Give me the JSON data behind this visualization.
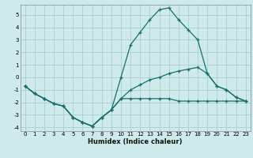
{
  "xlabel": "Humidex (Indice chaleur)",
  "bg_color": "#ceeaea",
  "grid_color": "#aacfcf",
  "line_color": "#1a6e6e",
  "xlim": [
    -0.5,
    23.5
  ],
  "ylim": [
    -4.3,
    5.8
  ],
  "xticks": [
    0,
    1,
    2,
    3,
    4,
    5,
    6,
    7,
    8,
    9,
    10,
    11,
    12,
    13,
    14,
    15,
    16,
    17,
    18,
    19,
    20,
    21,
    22,
    23
  ],
  "yticks": [
    -4,
    -3,
    -2,
    -1,
    0,
    1,
    2,
    3,
    4,
    5
  ],
  "line1_x": [
    0,
    1,
    2,
    3,
    4,
    5,
    6,
    7,
    8,
    9,
    10,
    11,
    12,
    13,
    14,
    15,
    16,
    17,
    18,
    19,
    20,
    21,
    22,
    23
  ],
  "line1_y": [
    -0.7,
    -1.3,
    -1.7,
    -2.1,
    -2.3,
    -3.2,
    -3.6,
    -3.9,
    -3.2,
    -2.6,
    -1.7,
    -1.7,
    -1.7,
    -1.7,
    -1.7,
    -1.7,
    -1.9,
    -1.9,
    -1.9,
    -1.9,
    -1.9,
    -1.9,
    -1.9,
    -1.9
  ],
  "line2_x": [
    0,
    1,
    2,
    3,
    4,
    5,
    6,
    7,
    8,
    9,
    10,
    11,
    12,
    13,
    14,
    15,
    16,
    17,
    18,
    19,
    20,
    21,
    22,
    23
  ],
  "line2_y": [
    -0.7,
    -1.3,
    -1.7,
    -2.1,
    -2.3,
    -3.2,
    -3.6,
    -3.9,
    -3.2,
    -2.6,
    0.0,
    2.6,
    3.6,
    4.6,
    5.4,
    5.55,
    4.6,
    3.8,
    3.0,
    0.3,
    -0.7,
    -1.0,
    -1.6,
    -1.9
  ],
  "line3_x": [
    0,
    1,
    2,
    3,
    4,
    5,
    6,
    7,
    8,
    9,
    10,
    11,
    12,
    13,
    14,
    15,
    16,
    17,
    18,
    19,
    20,
    21,
    22,
    23
  ],
  "line3_y": [
    -0.7,
    -1.3,
    -1.7,
    -2.1,
    -2.3,
    -3.2,
    -3.6,
    -3.9,
    -3.2,
    -2.6,
    -1.7,
    -1.0,
    -0.6,
    -0.2,
    0.0,
    0.3,
    0.5,
    0.65,
    0.8,
    0.3,
    -0.7,
    -1.0,
    -1.6,
    -1.9
  ]
}
